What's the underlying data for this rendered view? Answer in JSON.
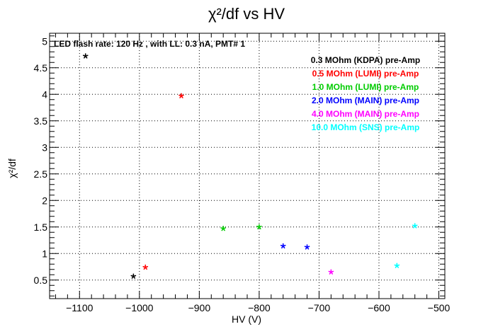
{
  "chart_data": {
    "type": "scatter",
    "title": "χ²/df vs HV",
    "xlabel": "HV (V)",
    "ylabel": "χ²/df",
    "xlim": [
      -1150,
      -490
    ],
    "ylim": [
      0.15,
      5.15
    ],
    "grid": true,
    "x_ticks": [
      -1100,
      -1000,
      -900,
      -800,
      -700,
      -600,
      -500
    ],
    "x_tick_labels": [
      "−1100",
      "−1000",
      "−900",
      "−800",
      "−700",
      "−600",
      "−500"
    ],
    "y_ticks": [
      0.5,
      1,
      1.5,
      2,
      2.5,
      3,
      3.5,
      4,
      4.5,
      5
    ],
    "y_tick_labels": [
      "0.5",
      "1",
      "1.5",
      "2",
      "2.5",
      "3",
      "3.5",
      "4",
      "4.5",
      "5"
    ],
    "annotation": "LED flash rate: 120 Hz , with LL: 0.3 nA, PMT# 1",
    "legend_position": "top-right",
    "series": [
      {
        "name": "0.3 MOhm (KDPA) pre-Amp",
        "color": "#000000",
        "points": [
          [
            -1090,
            4.72
          ],
          [
            -1010,
            0.57
          ]
        ]
      },
      {
        "name": "0.5 MOhm (LUMI) pre-Amp",
        "color": "#ff0000",
        "points": [
          [
            -930,
            3.97
          ],
          [
            -990,
            0.74
          ]
        ]
      },
      {
        "name": "1.0 MOhm (LUMI) pre-Amp",
        "color": "#00cc00",
        "points": [
          [
            -860,
            1.47
          ],
          [
            -800,
            1.5
          ]
        ]
      },
      {
        "name": "2.0 MOhm (MAIN) pre-Amp",
        "color": "#0000ff",
        "points": [
          [
            -760,
            1.14
          ],
          [
            -720,
            1.12
          ]
        ]
      },
      {
        "name": "4.0 MOhm (MAIN) pre-Amp",
        "color": "#ff00ff",
        "points": [
          [
            -680,
            0.65
          ]
        ]
      },
      {
        "name": "10.0 MOhm (SNS) pre-Amp",
        "color": "#00ffff",
        "points": [
          [
            -570,
            0.77
          ],
          [
            -540,
            1.52
          ]
        ]
      }
    ]
  }
}
